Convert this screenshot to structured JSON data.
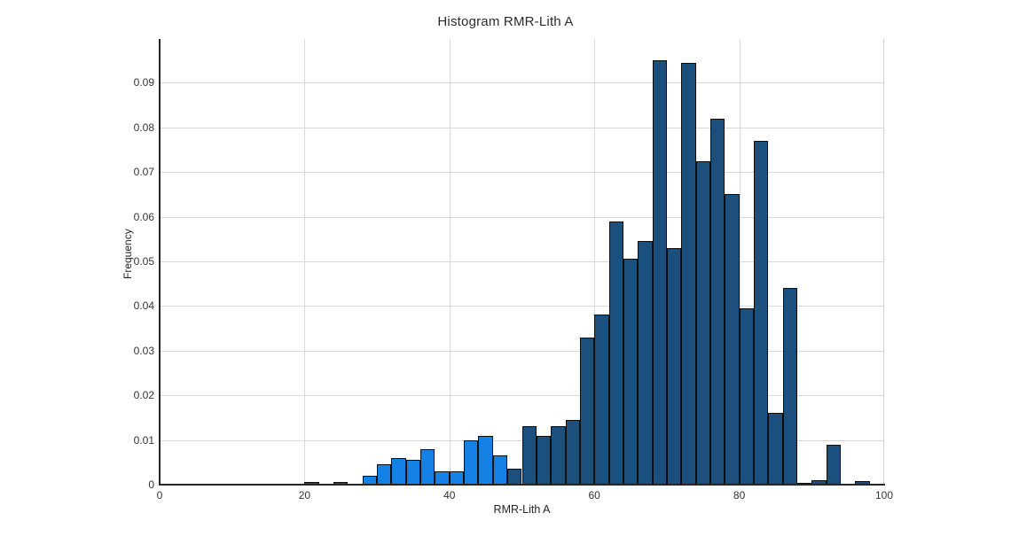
{
  "chart": {
    "title": "Histogram RMR-Lith A",
    "xlabel": "RMR-Lith A",
    "ylabel": "Frequency",
    "colors": {
      "bar_main": "#1b4f7d",
      "bar_highlight": "#1581e4",
      "bar_outline": "#0e0e0e",
      "gridline": "#d9d9d9",
      "axis": "#262626",
      "background": "#ffffff",
      "text": "#333333"
    }
  },
  "chart_data": {
    "type": "bar",
    "subtype": "histogram",
    "title": "Histogram RMR-Lith A",
    "xlabel": "RMR-Lith A",
    "ylabel": "Frequency",
    "xlim": [
      0,
      100
    ],
    "ylim": [
      0,
      0.0998
    ],
    "x_ticks": [
      0,
      20,
      40,
      60,
      80,
      100
    ],
    "y_ticks": [
      0,
      0.01,
      0.02,
      0.03,
      0.04,
      0.05,
      0.06,
      0.07,
      0.08,
      0.09
    ],
    "grid": true,
    "legend": "none",
    "bin_width": 2,
    "series_note": "highlight=true bins are drawn light blue (selected lithology range ~28-48), others dark navy",
    "bars": [
      {
        "x0": 20,
        "x1": 22,
        "freq": 0.0005,
        "highlight": false
      },
      {
        "x0": 24,
        "x1": 26,
        "freq": 0.0005,
        "highlight": false
      },
      {
        "x0": 28,
        "x1": 30,
        "freq": 0.002,
        "highlight": true
      },
      {
        "x0": 30,
        "x1": 32,
        "freq": 0.0045,
        "highlight": true
      },
      {
        "x0": 32,
        "x1": 34,
        "freq": 0.006,
        "highlight": true
      },
      {
        "x0": 34,
        "x1": 36,
        "freq": 0.0055,
        "highlight": true
      },
      {
        "x0": 36,
        "x1": 38,
        "freq": 0.008,
        "highlight": true
      },
      {
        "x0": 38,
        "x1": 40,
        "freq": 0.003,
        "highlight": true
      },
      {
        "x0": 40,
        "x1": 42,
        "freq": 0.003,
        "highlight": true
      },
      {
        "x0": 42,
        "x1": 44,
        "freq": 0.01,
        "highlight": true
      },
      {
        "x0": 44,
        "x1": 46,
        "freq": 0.011,
        "highlight": true
      },
      {
        "x0": 46,
        "x1": 48,
        "freq": 0.0065,
        "highlight": true
      },
      {
        "x0": 48,
        "x1": 50,
        "freq": 0.0035,
        "highlight": false
      },
      {
        "x0": 50,
        "x1": 52,
        "freq": 0.013,
        "highlight": false
      },
      {
        "x0": 52,
        "x1": 54,
        "freq": 0.011,
        "highlight": false
      },
      {
        "x0": 54,
        "x1": 56,
        "freq": 0.013,
        "highlight": false
      },
      {
        "x0": 56,
        "x1": 58,
        "freq": 0.0145,
        "highlight": false
      },
      {
        "x0": 58,
        "x1": 60,
        "freq": 0.033,
        "highlight": false
      },
      {
        "x0": 60,
        "x1": 62,
        "freq": 0.038,
        "highlight": false
      },
      {
        "x0": 62,
        "x1": 64,
        "freq": 0.059,
        "highlight": false
      },
      {
        "x0": 64,
        "x1": 66,
        "freq": 0.0505,
        "highlight": false
      },
      {
        "x0": 66,
        "x1": 68,
        "freq": 0.0545,
        "highlight": false
      },
      {
        "x0": 68,
        "x1": 70,
        "freq": 0.095,
        "highlight": false
      },
      {
        "x0": 70,
        "x1": 72,
        "freq": 0.053,
        "highlight": false
      },
      {
        "x0": 72,
        "x1": 74,
        "freq": 0.0945,
        "highlight": false
      },
      {
        "x0": 74,
        "x1": 76,
        "freq": 0.0725,
        "highlight": false
      },
      {
        "x0": 76,
        "x1": 78,
        "freq": 0.082,
        "highlight": false
      },
      {
        "x0": 78,
        "x1": 80,
        "freq": 0.065,
        "highlight": false
      },
      {
        "x0": 80,
        "x1": 82,
        "freq": 0.0395,
        "highlight": false
      },
      {
        "x0": 82,
        "x1": 84,
        "freq": 0.077,
        "highlight": false
      },
      {
        "x0": 84,
        "x1": 86,
        "freq": 0.016,
        "highlight": false
      },
      {
        "x0": 86,
        "x1": 88,
        "freq": 0.044,
        "highlight": false
      },
      {
        "x0": 88,
        "x1": 90,
        "freq": 0.0003,
        "highlight": false
      },
      {
        "x0": 90,
        "x1": 92,
        "freq": 0.001,
        "highlight": false
      },
      {
        "x0": 92,
        "x1": 94,
        "freq": 0.009,
        "highlight": false
      },
      {
        "x0": 96,
        "x1": 98,
        "freq": 0.0008,
        "highlight": false
      }
    ]
  }
}
